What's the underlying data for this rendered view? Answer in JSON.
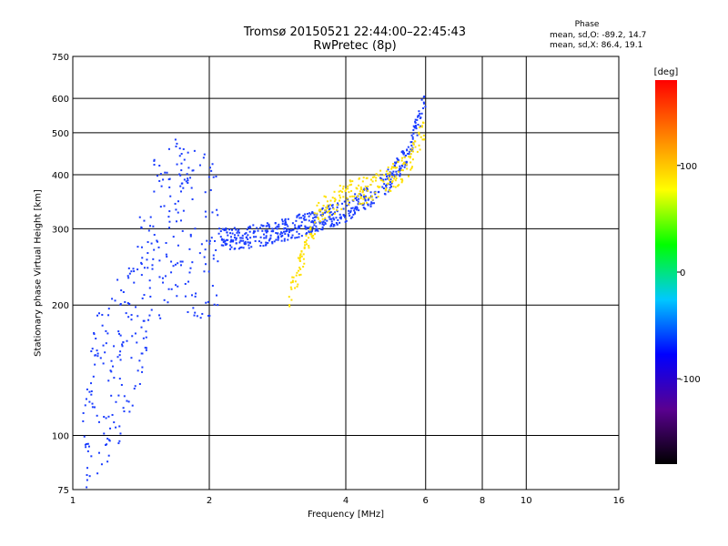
{
  "header": {
    "title_line1": "Tromsø 20150521 22:44:00–22:45:43",
    "title_line2": "RwPretec (8p)",
    "phase_heading": "Phase",
    "phase_o": "mean, sd,O: -89.2, 14.7",
    "phase_x": "mean, sd,X:  86.4, 19.1"
  },
  "chart_data": {
    "type": "scatter",
    "title": "Tromsø 20150521 22:44:00–22:45:43",
    "subtitle": "RwPretec (8p)",
    "xlabel": "Frequency [MHz]",
    "ylabel": "Stationary phase Virtual Height [km]",
    "x_scale": "log",
    "y_scale": "log",
    "xlim": [
      1,
      16
    ],
    "ylim": [
      75,
      750
    ],
    "x_ticks": [
      1,
      2,
      4,
      6,
      8,
      10,
      16
    ],
    "y_ticks": [
      75,
      100,
      200,
      300,
      400,
      500,
      600,
      750
    ],
    "grid": true,
    "colorbar": {
      "label": "[deg]",
      "range": [
        -180,
        180
      ],
      "ticks": [
        -100,
        0,
        100
      ],
      "colors": [
        "#000000",
        "#5a0090",
        "#0000ff",
        "#00c8ff",
        "#00ff00",
        "#ffff00",
        "#ff8000",
        "#ff0000"
      ]
    },
    "series": [
      {
        "mode": "O",
        "mean_phase": -89.2,
        "sd_phase": 14.7,
        "color": "#1a3cff",
        "x": [
          1.05,
          1.1,
          1.15,
          1.2,
          1.3,
          1.4,
          1.5,
          1.6,
          1.7,
          1.8,
          2.0,
          2.3,
          2.6,
          3.0,
          3.5,
          4.0,
          4.5,
          5.0,
          5.5,
          6.0
        ],
        "y": [
          110,
          115,
          125,
          135,
          160,
          200,
          280,
          300,
          310,
          300,
          285,
          285,
          290,
          300,
          315,
          330,
          355,
          390,
          450,
          600
        ]
      },
      {
        "mode": "X",
        "mean_phase": 86.4,
        "sd_phase": 19.1,
        "color": "#ffe000",
        "x": [
          3.0,
          3.5,
          4.0,
          4.5,
          5.0,
          5.5,
          6.0
        ],
        "y": [
          210,
          330,
          360,
          370,
          390,
          420,
          520
        ]
      }
    ]
  }
}
